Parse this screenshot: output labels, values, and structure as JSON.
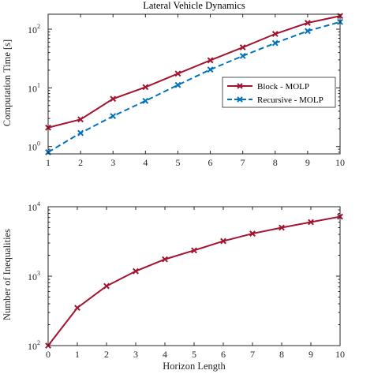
{
  "chart_data": [
    {
      "type": "line",
      "title": "Lateral Vehicle Dynamics",
      "xlabel": "",
      "ylabel": "Computation Time [s]",
      "yscale": "log",
      "xlim": [
        1,
        10
      ],
      "ylim": [
        0.75,
        180
      ],
      "xticks": [
        1,
        2,
        3,
        4,
        5,
        6,
        7,
        8,
        9,
        10
      ],
      "yticks": [
        {
          "value": 1,
          "base": "10",
          "exp": "0"
        },
        {
          "value": 10,
          "base": "10",
          "exp": "1"
        },
        {
          "value": 100,
          "base": "10",
          "exp": "2"
        }
      ],
      "legend_position": "right",
      "x": [
        1,
        2,
        3,
        4,
        5,
        6,
        7,
        8,
        9,
        10
      ],
      "series": [
        {
          "name": "Block - MOLP",
          "color": "#a2142f",
          "dash": "solid",
          "marker": "x",
          "values": [
            2.1,
            2.9,
            6.5,
            10.3,
            17.5,
            29.5,
            49,
            83,
            128,
            168
          ]
        },
        {
          "name": "Recursive - MOLP",
          "color": "#0072bd",
          "dash": "dashed",
          "marker": "x",
          "values": [
            0.8,
            1.7,
            3.3,
            6.0,
            11.2,
            20.5,
            35,
            58,
            93,
            133
          ]
        }
      ]
    },
    {
      "type": "line",
      "title": "",
      "xlabel": "Horizon Length",
      "ylabel": "Number of Inequalities",
      "yscale": "log",
      "xlim": [
        0,
        10
      ],
      "ylim": [
        100,
        10000
      ],
      "xticks": [
        0,
        1,
        2,
        3,
        4,
        5,
        6,
        7,
        8,
        9,
        10
      ],
      "yticks": [
        {
          "value": 100,
          "base": "10",
          "exp": "2"
        },
        {
          "value": 1000,
          "base": "10",
          "exp": "3"
        },
        {
          "value": 10000,
          "base": "10",
          "exp": "4"
        }
      ],
      "x": [
        0,
        1,
        2,
        3,
        4,
        5,
        6,
        7,
        8,
        9,
        10
      ],
      "series": [
        {
          "name": "",
          "color": "#a2142f",
          "dash": "solid",
          "marker": "x",
          "values": [
            100,
            350,
            720,
            1180,
            1750,
            2350,
            3200,
            4100,
            5000,
            6000,
            7200
          ]
        }
      ]
    }
  ]
}
